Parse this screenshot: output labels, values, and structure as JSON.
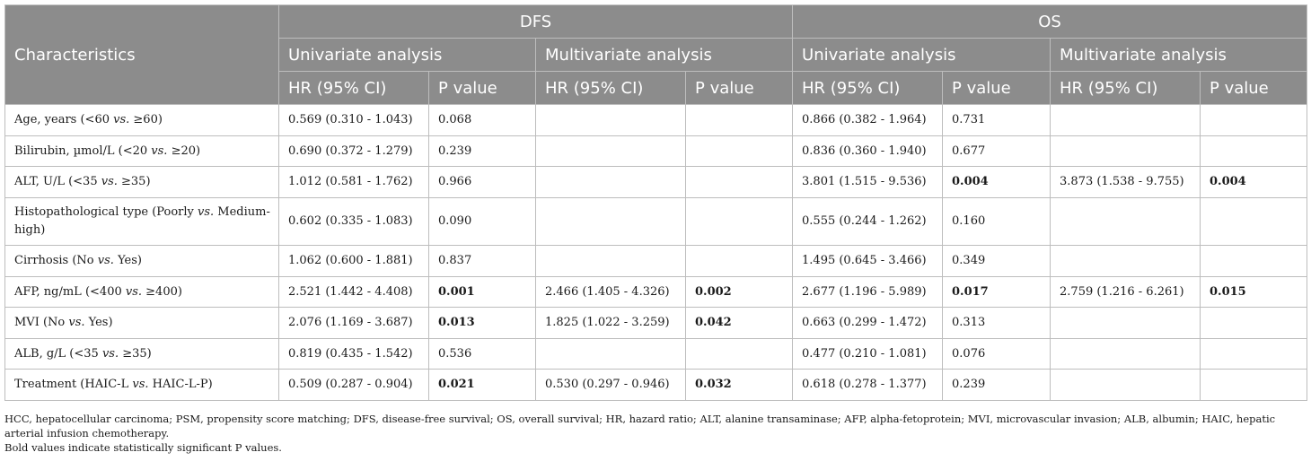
{
  "header": {
    "characteristics": "Characteristics",
    "dfs": "DFS",
    "os": "OS",
    "univariate": "Univariate analysis",
    "multivariate": "Multivariate analysis",
    "hr": "HR (95% CI)",
    "p": "P value"
  },
  "rows": [
    {
      "label_pre": "Age, years (<60 ",
      "label_vs": "vs.",
      "label_post": " ≥60)",
      "dfs_uni_hr": "0.569 (0.310 - 1.043)",
      "dfs_uni_p": "0.068",
      "dfs_uni_p_bold": false,
      "dfs_multi_hr": "",
      "dfs_multi_p": "",
      "dfs_multi_p_bold": false,
      "os_uni_hr": "0.866 (0.382 - 1.964)",
      "os_uni_p": "0.731",
      "os_uni_p_bold": false,
      "os_multi_hr": "",
      "os_multi_p": "",
      "os_multi_p_bold": false
    },
    {
      "label_pre": "Bilirubin, µmol/L (<20 ",
      "label_vs": "vs.",
      "label_post": " ≥20)",
      "dfs_uni_hr": "0.690 (0.372 - 1.279)",
      "dfs_uni_p": "0.239",
      "dfs_uni_p_bold": false,
      "dfs_multi_hr": "",
      "dfs_multi_p": "",
      "dfs_multi_p_bold": false,
      "os_uni_hr": "0.836 (0.360 - 1.940)",
      "os_uni_p": "0.677",
      "os_uni_p_bold": false,
      "os_multi_hr": "",
      "os_multi_p": "",
      "os_multi_p_bold": false
    },
    {
      "label_pre": "ALT, U/L (<35 ",
      "label_vs": "vs.",
      "label_post": " ≥35)",
      "dfs_uni_hr": "1.012 (0.581 - 1.762)",
      "dfs_uni_p": "0.966",
      "dfs_uni_p_bold": false,
      "dfs_multi_hr": "",
      "dfs_multi_p": "",
      "dfs_multi_p_bold": false,
      "os_uni_hr": "3.801 (1.515 - 9.536)",
      "os_uni_p": "0.004",
      "os_uni_p_bold": true,
      "os_multi_hr": "3.873 (1.538 - 9.755)",
      "os_multi_p": "0.004",
      "os_multi_p_bold": true
    },
    {
      "label_pre": "Histopathological type (Poorly ",
      "label_vs": "vs.",
      "label_post": " Medium-high)",
      "dfs_uni_hr": "0.602 (0.335 - 1.083)",
      "dfs_uni_p": "0.090",
      "dfs_uni_p_bold": false,
      "dfs_multi_hr": "",
      "dfs_multi_p": "",
      "dfs_multi_p_bold": false,
      "os_uni_hr": "0.555 (0.244 - 1.262)",
      "os_uni_p": "0.160",
      "os_uni_p_bold": false,
      "os_multi_hr": "",
      "os_multi_p": "",
      "os_multi_p_bold": false
    },
    {
      "label_pre": "Cirrhosis (No ",
      "label_vs": "vs.",
      "label_post": " Yes)",
      "dfs_uni_hr": "1.062 (0.600 - 1.881)",
      "dfs_uni_p": "0.837",
      "dfs_uni_p_bold": false,
      "dfs_multi_hr": "",
      "dfs_multi_p": "",
      "dfs_multi_p_bold": false,
      "os_uni_hr": "1.495 (0.645 - 3.466)",
      "os_uni_p": "0.349",
      "os_uni_p_bold": false,
      "os_multi_hr": "",
      "os_multi_p": "",
      "os_multi_p_bold": false
    },
    {
      "label_pre": "AFP, ng/mL (<400 ",
      "label_vs": "vs.",
      "label_post": " ≥400)",
      "dfs_uni_hr": "2.521 (1.442 - 4.408)",
      "dfs_uni_p": "0.001",
      "dfs_uni_p_bold": true,
      "dfs_multi_hr": "2.466 (1.405 - 4.326)",
      "dfs_multi_p": "0.002",
      "dfs_multi_p_bold": true,
      "os_uni_hr": "2.677 (1.196 - 5.989)",
      "os_uni_p": "0.017",
      "os_uni_p_bold": true,
      "os_multi_hr": "2.759 (1.216 - 6.261)",
      "os_multi_p": "0.015",
      "os_multi_p_bold": true
    },
    {
      "label_pre": "MVI (No ",
      "label_vs": "vs.",
      "label_post": " Yes)",
      "dfs_uni_hr": "2.076 (1.169 - 3.687)",
      "dfs_uni_p": "0.013",
      "dfs_uni_p_bold": true,
      "dfs_multi_hr": "1.825 (1.022 - 3.259)",
      "dfs_multi_p": "0.042",
      "dfs_multi_p_bold": true,
      "os_uni_hr": "0.663 (0.299 - 1.472)",
      "os_uni_p": "0.313",
      "os_uni_p_bold": false,
      "os_multi_hr": "",
      "os_multi_p": "",
      "os_multi_p_bold": false
    },
    {
      "label_pre": "ALB, g/L (<35 ",
      "label_vs": "vs.",
      "label_post": " ≥35)",
      "dfs_uni_hr": "0.819 (0.435 - 1.542)",
      "dfs_uni_p": "0.536",
      "dfs_uni_p_bold": false,
      "dfs_multi_hr": "",
      "dfs_multi_p": "",
      "dfs_multi_p_bold": false,
      "os_uni_hr": "0.477 (0.210 - 1.081)",
      "os_uni_p": "0.076",
      "os_uni_p_bold": false,
      "os_multi_hr": "",
      "os_multi_p": "",
      "os_multi_p_bold": false
    },
    {
      "label_pre": "Treatment (HAIC-L ",
      "label_vs": "vs.",
      "label_post": " HAIC-L-P)",
      "dfs_uni_hr": "0.509 (0.287 - 0.904)",
      "dfs_uni_p": "0.021",
      "dfs_uni_p_bold": true,
      "dfs_multi_hr": "0.530 (0.297 - 0.946)",
      "dfs_multi_p": "0.032",
      "dfs_multi_p_bold": true,
      "os_uni_hr": "0.618 (0.278 - 1.377)",
      "os_uni_p": "0.239",
      "os_uni_p_bold": false,
      "os_multi_hr": "",
      "os_multi_p": "",
      "os_multi_p_bold": false
    }
  ],
  "notes": {
    "abbreviations": "HCC, hepatocellular carcinoma; PSM, propensity score matching; DFS, disease-free survival; OS, overall survival; HR, hazard ratio; ALT, alanine transaminase; AFP, alpha-fetoprotein; MVI, microvascular invasion; ALB, albumin; HAIC, hepatic arterial infusion chemotherapy.",
    "bold_note": "Bold values indicate statistically significant P values."
  },
  "colors": {
    "header_bg": "#8c8c8c",
    "header_text": "#ffffff",
    "grid_line": "#bdbdbd"
  }
}
